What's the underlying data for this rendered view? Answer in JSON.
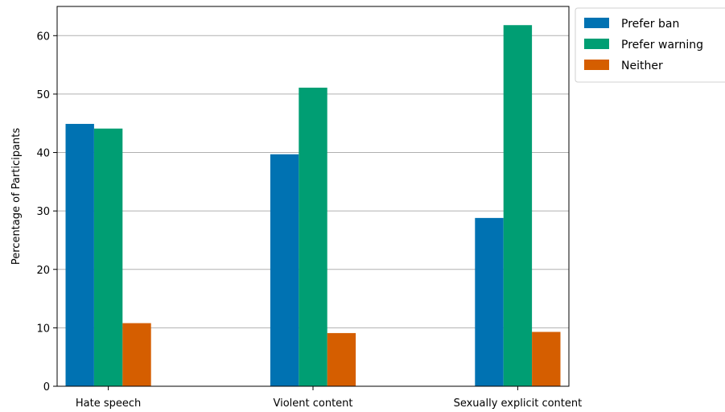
{
  "chart_data": {
    "type": "bar",
    "title": "",
    "xlabel": "",
    "ylabel": "Percentage of Participants",
    "categories": [
      "Hate speech",
      "Violent content",
      "Sexually explicit content"
    ],
    "series": [
      {
        "name": "Prefer ban",
        "color": "#0072b2",
        "values": [
          44.9,
          39.7,
          28.8
        ]
      },
      {
        "name": "Prefer warning",
        "color": "#009e73",
        "values": [
          44.1,
          51.1,
          61.8
        ]
      },
      {
        "name": "Neither",
        "color": "#d55e00",
        "values": [
          10.8,
          9.1,
          9.3
        ]
      }
    ],
    "ylim": [
      0,
      65
    ],
    "yticks": [
      0,
      10,
      20,
      30,
      40,
      50,
      60
    ],
    "grid": "horizontal",
    "legend_position": "outside-top-right"
  }
}
